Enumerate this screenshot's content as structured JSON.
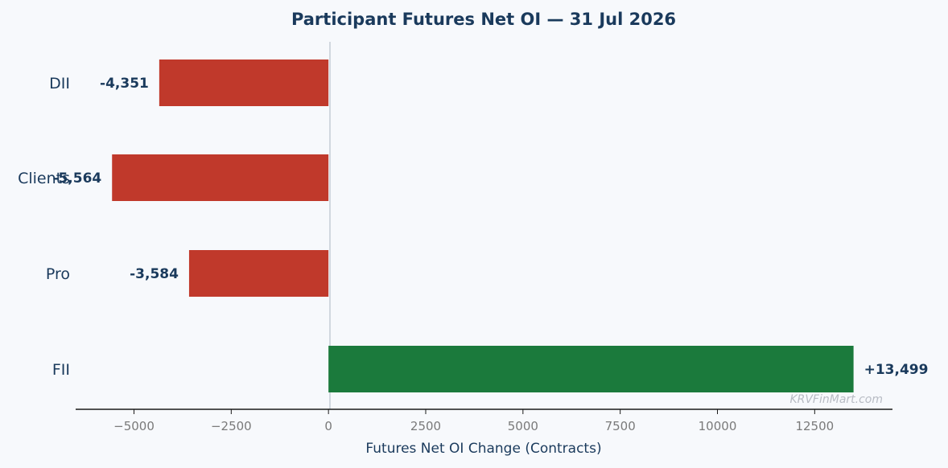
{
  "chart_data": {
    "type": "bar",
    "orientation": "horizontal",
    "title": "Participant Futures Net OI — 31 Jul 2026",
    "xlabel": "Futures Net OI Change (Contracts)",
    "ylabel": "",
    "categories": [
      "FII",
      "Pro",
      "Clients",
      "DII"
    ],
    "values": [
      13499,
      -3584,
      -5564,
      -4351
    ],
    "value_labels": [
      "+13,499",
      "-3,584",
      "-5,564",
      "-4,351"
    ],
    "xlim": [
      -6500,
      14500
    ],
    "xticks": [
      -5000,
      -2500,
      0,
      2500,
      5000,
      7500,
      10000,
      12500
    ],
    "xtick_labels": [
      "−5000",
      "−2500",
      "0",
      "2500",
      "5000",
      "7500",
      "10000",
      "12500"
    ],
    "grid": false,
    "colors": {
      "positive": "#1b7a3c",
      "negative": "#c0392b"
    }
  },
  "watermark": "KRVFinMart.com"
}
